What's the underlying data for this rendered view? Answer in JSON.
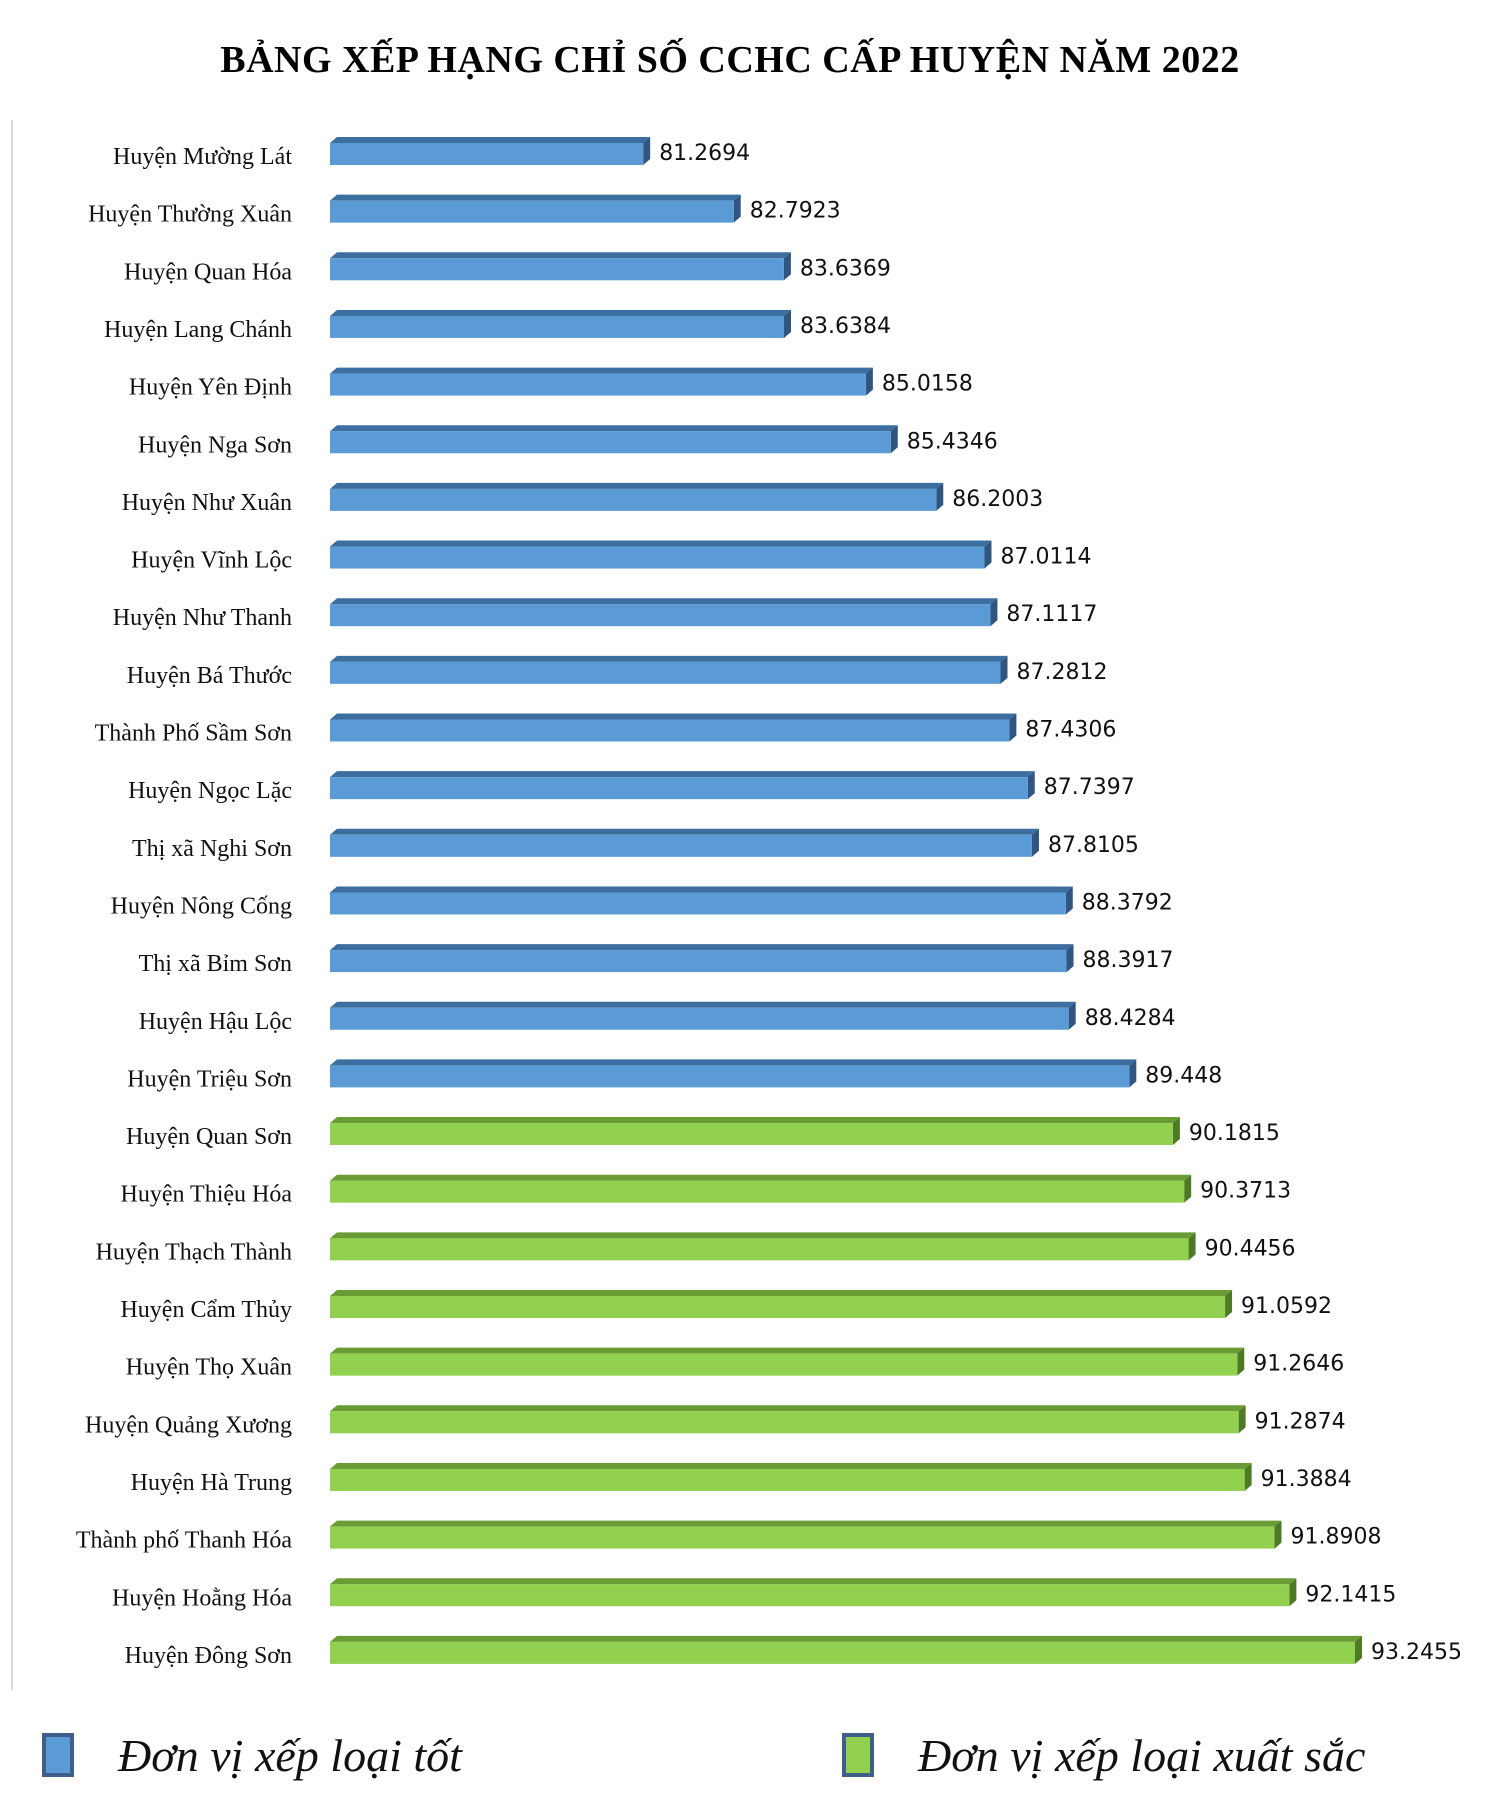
{
  "chart_data": {
    "type": "bar",
    "orientation": "horizontal",
    "title": "BẢNG XẾP HẠNG CHỈ SỐ CCHC CẤP HUYỆN NĂM 2022",
    "xlim": [
      76,
      94
    ],
    "grid": false,
    "legend_position": "bottom",
    "categories": [
      "Huyện Mường Lát",
      "Huyện Thường Xuân",
      "Huyện Quan Hóa",
      "Huyện Lang Chánh",
      "Huyện Yên Định",
      "Huyện Nga Sơn",
      "Huyện Như Xuân",
      "Huyện Vĩnh Lộc",
      "Huyện Như Thanh",
      "Huyện Bá Thước",
      "Thành Phố Sầm Sơn",
      "Huyện Ngọc Lặc",
      "Thị xã Nghi Sơn",
      "Huyện Nông Cống",
      "Thị xã Bỉm Sơn",
      "Huyện Hậu Lộc",
      "Huyện Triệu Sơn",
      "Huyện Quan Sơn",
      "Huyện Thiệu Hóa",
      "Huyện Thạch Thành",
      "Huyện Cẩm Thủy",
      "Huyện Thọ Xuân",
      "Huyện Quảng Xương",
      "Huyện Hà Trung",
      "Thành phố Thanh Hóa",
      "Huyện Hoằng Hóa",
      "Huyện Đông Sơn"
    ],
    "values": [
      81.2694,
      82.7923,
      83.6369,
      83.6384,
      85.0158,
      85.4346,
      86.2003,
      87.0114,
      87.1117,
      87.2812,
      87.4306,
      87.7397,
      87.8105,
      88.3792,
      88.3917,
      88.4284,
      89.448,
      90.1815,
      90.3713,
      90.4456,
      91.0592,
      91.2646,
      91.2874,
      91.3884,
      91.8908,
      92.1415,
      93.2455
    ],
    "value_labels": [
      "81.2694",
      "82.7923",
      "83.6369",
      "83.6384",
      "85.0158",
      "85.4346",
      "86.2003",
      "87.0114",
      "87.1117",
      "87.2812",
      "87.4306",
      "87.7397",
      "87.8105",
      "88.3792",
      "88.3917",
      "88.4284",
      "89.448",
      "90.1815",
      "90.3713",
      "90.4456",
      "91.0592",
      "91.2646",
      "91.2874",
      "91.3884",
      "91.8908",
      "92.1415",
      "93.2455"
    ],
    "groups": [
      "tot",
      "tot",
      "tot",
      "tot",
      "tot",
      "tot",
      "tot",
      "tot",
      "tot",
      "tot",
      "tot",
      "tot",
      "tot",
      "tot",
      "tot",
      "tot",
      "tot",
      "xuatsac",
      "xuatsac",
      "xuatsac",
      "xuatsac",
      "xuatsac",
      "xuatsac",
      "xuatsac",
      "xuatsac",
      "xuatsac",
      "xuatsac"
    ],
    "legend": [
      {
        "key": "tot",
        "label": "Đơn vị xếp loại tốt",
        "color": "#5b9bd5",
        "top_color": "#3c6e9f",
        "side_color": "#2f5580"
      },
      {
        "key": "xuatsac",
        "label": "Đơn vị xếp loại xuất sắc",
        "color": "#92d050",
        "top_color": "#6a9c35",
        "side_color": "#4e7a25"
      }
    ]
  }
}
